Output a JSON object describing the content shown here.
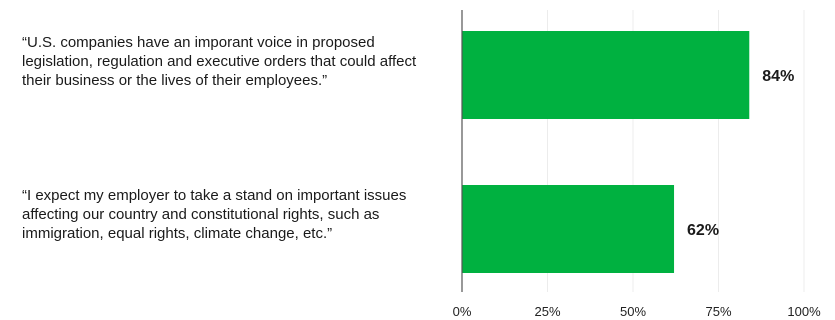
{
  "chart_data": {
    "type": "bar",
    "orientation": "horizontal",
    "categories": [
      "“U.S. companies have an imporant voice in proposed legislation, regulation and executive orders that could affect their business or the lives of their employees.”",
      "“I expect my employer to take a stand on important issues affecting our country and constitutional rights, such as immigration, equal rights, climate change, etc.”"
    ],
    "values": [
      84,
      62
    ],
    "value_labels": [
      "84%",
      "62%"
    ],
    "xlim": [
      0,
      100
    ],
    "x_ticks": [
      0,
      25,
      50,
      75,
      100
    ],
    "x_tick_labels": [
      "0%",
      "25%",
      "50%",
      "75%",
      "100%"
    ],
    "bar_color": "#00b140",
    "grid": true,
    "legend": "none"
  }
}
